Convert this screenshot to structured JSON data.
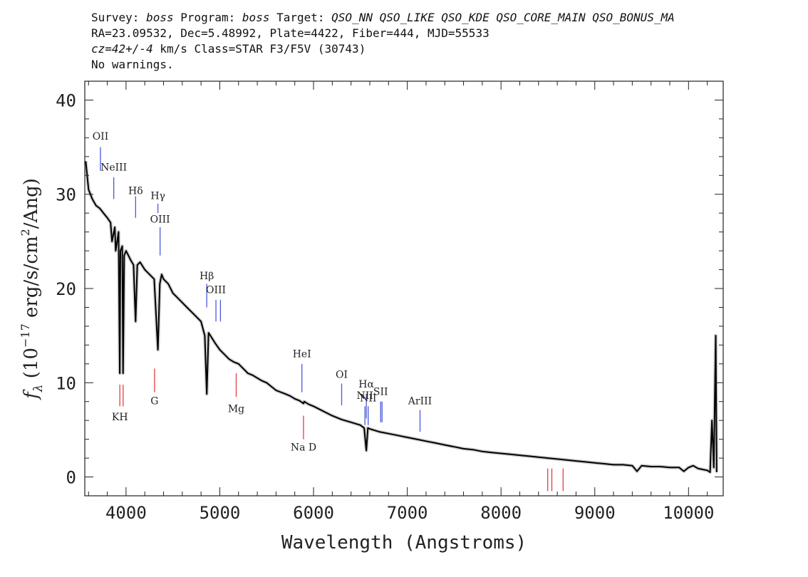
{
  "header": {
    "line1_prefix": "Survey: ",
    "survey": "boss",
    "program_label": " Program: ",
    "program": "boss",
    "target_label": " Target: ",
    "target": "QSO_NN QSO_LIKE QSO_KDE QSO_CORE_MAIN QSO_BONUS_MA",
    "line2": "RA=23.09532, Dec=5.48992, Plate=4422, Fiber=444, MJD=55533",
    "line3_z": "cz=42+/-4",
    "line3_rest": " km/s Class=STAR F3/F5V (30743)",
    "line4": "No warnings."
  },
  "chart_data": {
    "type": "line",
    "xlabel": "Wavelength (Angstroms)",
    "ylabel_prefix": "f",
    "ylabel_sub": "λ",
    "ylabel_units_a": " (10",
    "ylabel_units_exp": "−17",
    "ylabel_units_b": " erg/s/cm",
    "ylabel_units_exp2": "2",
    "ylabel_units_c": "/Ang)",
    "xlim": [
      3560,
      10370
    ],
    "ylim": [
      -2,
      42
    ],
    "x_ticks": [
      4000,
      5000,
      6000,
      7000,
      8000,
      9000,
      10000
    ],
    "y_ticks": [
      0,
      10,
      20,
      30,
      40
    ],
    "x_tick_labels": [
      "4000",
      "5000",
      "6000",
      "7000",
      "8000",
      "9000",
      "10000"
    ],
    "y_tick_labels": [
      "0",
      "10",
      "20",
      "30",
      "40"
    ],
    "series": [
      {
        "color": "#000000",
        "x": [
          3570,
          3600,
          3640,
          3680,
          3720,
          3760,
          3800,
          3835,
          3850,
          3880,
          3890,
          3920,
          3933,
          3940,
          3960,
          3968,
          3980,
          4000,
          4050,
          4080,
          4102,
          4120,
          4150,
          4200,
          4250,
          4300,
          4340,
          4360,
          4380,
          4400,
          4450,
          4500,
          4550,
          4600,
          4650,
          4700,
          4750,
          4800,
          4840,
          4861,
          4880,
          4900,
          4950,
          5000,
          5050,
          5100,
          5150,
          5200,
          5250,
          5300,
          5350,
          5400,
          5450,
          5500,
          5550,
          5600,
          5650,
          5700,
          5750,
          5800,
          5850,
          5893,
          5900,
          5950,
          6000,
          6100,
          6200,
          6300,
          6400,
          6500,
          6540,
          6563,
          6580,
          6600,
          6700,
          6800,
          6900,
          7000,
          7100,
          7200,
          7300,
          7400,
          7500,
          7600,
          7700,
          7800,
          7900,
          8000,
          8100,
          8200,
          8300,
          8400,
          8500,
          8600,
          8700,
          8800,
          8900,
          9000,
          9100,
          9200,
          9300,
          9400,
          9450,
          9500,
          9600,
          9700,
          9800,
          9900,
          9950,
          10000,
          10050,
          10100,
          10150,
          10200,
          10230,
          10250,
          10270,
          10290,
          10300
        ],
        "y": [
          33.5,
          30.5,
          29.5,
          28.8,
          28.5,
          28.0,
          27.5,
          27.0,
          25.0,
          26.5,
          24.0,
          26.0,
          11.0,
          24.0,
          24.5,
          11.0,
          23.5,
          24.0,
          23.0,
          22.5,
          16.5,
          22.5,
          22.8,
          22.0,
          21.5,
          21.0,
          13.5,
          20.5,
          21.5,
          21.0,
          20.5,
          19.5,
          19.0,
          18.5,
          18.0,
          17.5,
          17.0,
          16.5,
          15.0,
          8.8,
          15.3,
          15.0,
          14.2,
          13.5,
          13.0,
          12.5,
          12.2,
          12.0,
          11.5,
          11.0,
          10.8,
          10.5,
          10.2,
          10.0,
          9.6,
          9.2,
          9.0,
          8.8,
          8.6,
          8.3,
          8.1,
          7.8,
          8.0,
          7.7,
          7.5,
          7.0,
          6.5,
          6.1,
          5.8,
          5.5,
          5.2,
          2.8,
          5.2,
          5.1,
          4.8,
          4.6,
          4.4,
          4.2,
          4.0,
          3.8,
          3.6,
          3.4,
          3.2,
          3.0,
          2.9,
          2.7,
          2.6,
          2.5,
          2.4,
          2.3,
          2.2,
          2.1,
          2.0,
          1.9,
          1.8,
          1.7,
          1.6,
          1.5,
          1.4,
          1.3,
          1.3,
          1.2,
          0.6,
          1.2,
          1.1,
          1.1,
          1.0,
          1.0,
          0.6,
          1.0,
          1.2,
          0.9,
          0.8,
          0.7,
          0.5,
          6.0,
          1.0,
          15.0,
          0.5
        ]
      }
    ],
    "blue_lines": [
      {
        "name": "OII",
        "x": 3727,
        "ymin": 32.5,
        "ymax": 35.0,
        "label": "OII",
        "ly": 35.8
      },
      {
        "name": "NeIII",
        "x": 3869,
        "ymin": 29.5,
        "ymax": 31.8,
        "label": "NeIII",
        "ly": 32.5
      },
      {
        "name": "Hdelta",
        "x": 4102,
        "ymin": 27.5,
        "ymax": 29.8,
        "label": "Hδ",
        "ly": 30.0
      },
      {
        "name": "Hgamma",
        "x": 4340,
        "ymin": 28.0,
        "ymax": 29.0,
        "label": "Hγ",
        "ly": 29.5
      },
      {
        "name": "OIII-4363",
        "x": 4363,
        "ymin": 23.5,
        "ymax": 26.5,
        "label": "OIII",
        "ly": 27.0
      },
      {
        "name": "Hbeta",
        "x": 4861,
        "ymin": 18.0,
        "ymax": 20.5,
        "label": "Hβ",
        "ly": 21.0
      },
      {
        "name": "OIII-4959",
        "x": 4959,
        "ymin": 16.5,
        "ymax": 18.8,
        "label": "OIII",
        "ly": 19.5
      },
      {
        "name": "OIII-5007",
        "x": 5007,
        "ymin": 16.5,
        "ymax": 18.8,
        "label": "",
        "ly": 0
      },
      {
        "name": "HeI",
        "x": 5876,
        "ymin": 9.0,
        "ymax": 12.0,
        "label": "HeI",
        "ly": 12.7
      },
      {
        "name": "OI",
        "x": 6300,
        "ymin": 7.6,
        "ymax": 9.9,
        "label": "OI",
        "ly": 10.5
      },
      {
        "name": "NII-6548",
        "x": 6548,
        "ymin": 5.5,
        "ymax": 7.5,
        "label": "NII",
        "ly": 8.3
      },
      {
        "name": "Halpha",
        "x": 6563,
        "ymin": 6.2,
        "ymax": 8.7,
        "label": "Hα",
        "ly": 9.5
      },
      {
        "name": "NII-6583",
        "x": 6583,
        "ymin": 5.5,
        "ymax": 7.5,
        "label": "NII",
        "ly": 8.0
      },
      {
        "name": "SII-6716",
        "x": 6716,
        "ymin": 5.8,
        "ymax": 8.0,
        "label": "SII",
        "ly": 8.7
      },
      {
        "name": "SII-6731",
        "x": 6731,
        "ymin": 5.8,
        "ymax": 8.0,
        "label": "",
        "ly": 0
      },
      {
        "name": "ArIII",
        "x": 7136,
        "ymin": 4.8,
        "ymax": 7.1,
        "label": "ArIII",
        "ly": 7.7
      }
    ],
    "red_lines": [
      {
        "name": "K",
        "x": 3934,
        "ymin": 7.5,
        "ymax": 9.8,
        "label": "KH",
        "ly": 6.0
      },
      {
        "name": "H",
        "x": 3969,
        "ymin": 7.5,
        "ymax": 9.8,
        "label": "",
        "ly": 0
      },
      {
        "name": "G",
        "x": 4304,
        "ymin": 9.0,
        "ymax": 11.5,
        "label": "G",
        "ly": 7.7
      },
      {
        "name": "Mg",
        "x": 5175,
        "ymin": 8.5,
        "ymax": 11.0,
        "label": "Mg",
        "ly": 6.9
      },
      {
        "name": "NaD",
        "x": 5893,
        "ymin": 4.0,
        "ymax": 6.5,
        "label": "Na D",
        "ly": 2.8
      },
      {
        "name": "CaII-8498",
        "x": 8498,
        "ymin": -1.5,
        "ymax": 0.9,
        "label": "",
        "ly": 0
      },
      {
        "name": "CaII-8542",
        "x": 8542,
        "ymin": -1.5,
        "ymax": 0.9,
        "label": "",
        "ly": 0
      },
      {
        "name": "CaII-8662",
        "x": 8662,
        "ymin": -1.5,
        "ymax": 0.9,
        "label": "",
        "ly": 0
      }
    ],
    "blue_color": "#4a5ad6",
    "red_color": "#e04040",
    "grid": false
  }
}
